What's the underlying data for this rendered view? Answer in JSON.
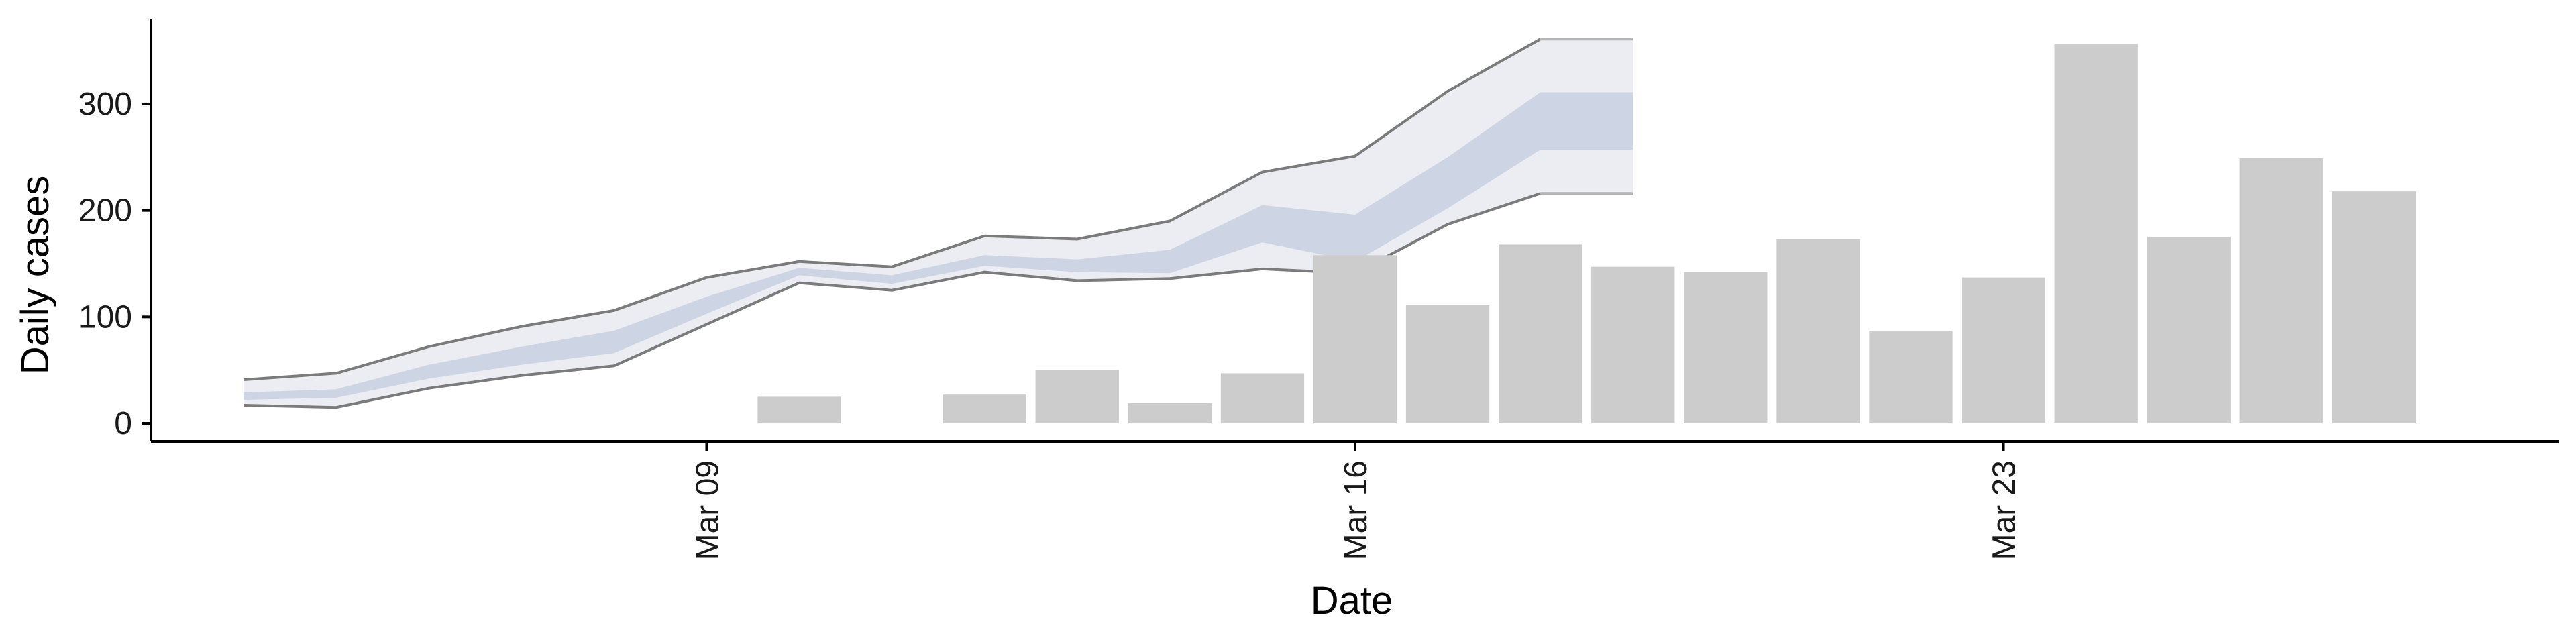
{
  "chart_data": {
    "type": "bar",
    "xlabel": "Date",
    "ylabel": "Daily cases",
    "x_tick_labels": [
      {
        "date": "2020-03-09",
        "label": "Mar 09"
      },
      {
        "date": "2020-03-16",
        "label": "Mar 16"
      },
      {
        "date": "2020-03-23",
        "label": "Mar 23"
      }
    ],
    "y_ticks": [
      0,
      100,
      200,
      300
    ],
    "xlim": [
      "2020-03-03",
      "2020-03-29"
    ],
    "ylim": [
      -17,
      380
    ],
    "bars": [
      {
        "date": "2020-03-10",
        "value": 25
      },
      {
        "date": "2020-03-12",
        "value": 27
      },
      {
        "date": "2020-03-13",
        "value": 50
      },
      {
        "date": "2020-03-14",
        "value": 19
      },
      {
        "date": "2020-03-15",
        "value": 47
      },
      {
        "date": "2020-03-16",
        "value": 158
      },
      {
        "date": "2020-03-17",
        "value": 111
      },
      {
        "date": "2020-03-18",
        "value": 168
      },
      {
        "date": "2020-03-19",
        "value": 147
      },
      {
        "date": "2020-03-20",
        "value": 142
      },
      {
        "date": "2020-03-21",
        "value": 173
      },
      {
        "date": "2020-03-22",
        "value": 87
      },
      {
        "date": "2020-03-23",
        "value": 137
      },
      {
        "date": "2020-03-24",
        "value": 356
      },
      {
        "date": "2020-03-25",
        "value": 175
      },
      {
        "date": "2020-03-26",
        "value": 249
      },
      {
        "date": "2020-03-27",
        "value": 218
      }
    ],
    "band": {
      "dates": [
        "2020-03-04",
        "2020-03-05",
        "2020-03-06",
        "2020-03-07",
        "2020-03-08",
        "2020-03-09",
        "2020-03-10",
        "2020-03-11",
        "2020-03-12",
        "2020-03-13",
        "2020-03-14",
        "2020-03-15",
        "2020-03-16",
        "2020-03-17",
        "2020-03-18",
        "2020-03-19"
      ],
      "outer_upper": [
        41,
        47,
        72,
        91,
        106,
        137,
        152,
        147,
        176,
        173,
        190,
        236,
        251,
        312,
        361,
        361
      ],
      "outer_lower": [
        17,
        15,
        33,
        45,
        54,
        93,
        132,
        125,
        142,
        134,
        136,
        145,
        141,
        187,
        216,
        216
      ],
      "inner_upper": [
        29,
        32,
        55,
        72,
        87,
        119,
        146,
        139,
        158,
        154,
        163,
        205,
        196,
        250,
        311,
        311
      ],
      "inner_lower": [
        22,
        24,
        42,
        55,
        66,
        103,
        139,
        131,
        148,
        142,
        141,
        170,
        152,
        202,
        257,
        257
      ]
    },
    "colors": {
      "bar": "#cccccc",
      "outer_band": "#ecedf2",
      "inner_band": "#cdd4e3",
      "band_line_dark": "#7b7b7b",
      "band_line_light": "#b5b5b5",
      "axis": "#000000"
    },
    "grid": false,
    "legend": "none"
  }
}
